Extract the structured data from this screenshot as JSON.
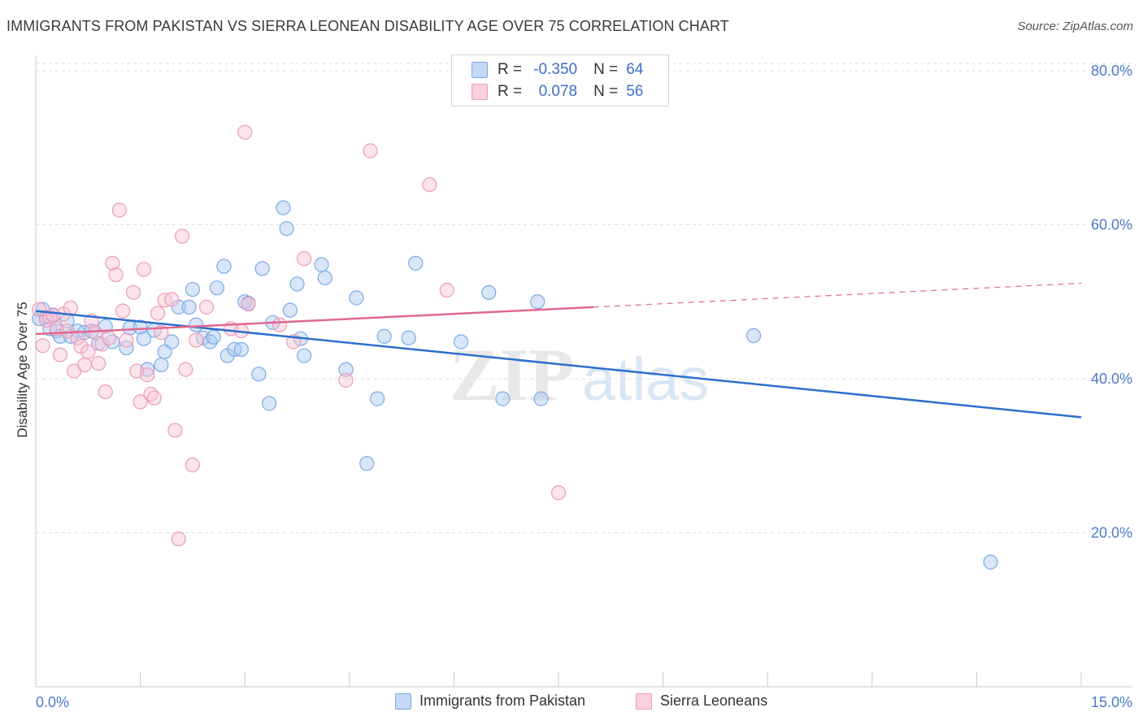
{
  "title": "IMMIGRANTS FROM PAKISTAN VS SIERRA LEONEAN DISABILITY AGE OVER 75 CORRELATION CHART",
  "source": "Source: ZipAtlas.com",
  "watermark": {
    "zip": "ZIP",
    "atlas": "atlas"
  },
  "legend_top": {
    "r_label": "R =",
    "n_label": "N =",
    "rows": [
      {
        "r": "-0.350",
        "n": "64"
      },
      {
        "r": "0.078",
        "n": "56"
      }
    ]
  },
  "chart_data": {
    "type": "scatter",
    "title": "IMMIGRANTS FROM PAKISTAN VS SIERRA LEONEAN DISABILITY AGE OVER 75 CORRELATION CHART",
    "xlabel": "",
    "ylabel": "Disability Age Over 75",
    "xlim": [
      0,
      15
    ],
    "ylim": [
      0,
      82
    ],
    "x_tick_labels": [
      "0.0%",
      "15.0%"
    ],
    "y_ticks": [
      20,
      40,
      60,
      80
    ],
    "y_tick_labels": [
      "20.0%",
      "40.0%",
      "60.0%",
      "80.0%"
    ],
    "grid": true,
    "legend": "bottom",
    "series": [
      {
        "name": "Immigrants from Pakistan",
        "color": "#7aaae6",
        "fill": "#aac8f0",
        "trend_color": "#2e6fcc",
        "trend": {
          "x": [
            0,
            15
          ],
          "y": [
            48.8,
            35.0
          ]
        },
        "points": [
          [
            0.05,
            47.8
          ],
          [
            0.1,
            49.0
          ],
          [
            0.15,
            48.0
          ],
          [
            0.2,
            46.5
          ],
          [
            0.25,
            48.2
          ],
          [
            0.3,
            46.2
          ],
          [
            0.35,
            45.5
          ],
          [
            0.45,
            47.5
          ],
          [
            0.5,
            45.5
          ],
          [
            0.6,
            46.2
          ],
          [
            0.7,
            46.0
          ],
          [
            0.8,
            46.2
          ],
          [
            0.9,
            44.6
          ],
          [
            1.0,
            46.8
          ],
          [
            1.1,
            44.8
          ],
          [
            1.3,
            44.0
          ],
          [
            1.35,
            46.6
          ],
          [
            1.5,
            46.7
          ],
          [
            1.55,
            45.2
          ],
          [
            1.6,
            41.2
          ],
          [
            1.7,
            46.3
          ],
          [
            1.8,
            41.8
          ],
          [
            1.85,
            43.5
          ],
          [
            1.95,
            44.8
          ],
          [
            2.05,
            49.3
          ],
          [
            2.2,
            49.3
          ],
          [
            2.25,
            51.6
          ],
          [
            2.3,
            47.0
          ],
          [
            2.4,
            45.3
          ],
          [
            2.5,
            44.8
          ],
          [
            2.55,
            45.4
          ],
          [
            2.6,
            51.8
          ],
          [
            2.7,
            54.6
          ],
          [
            2.75,
            43.0
          ],
          [
            2.85,
            43.8
          ],
          [
            2.95,
            43.8
          ],
          [
            3.0,
            50.0
          ],
          [
            3.05,
            49.8
          ],
          [
            3.2,
            40.6
          ],
          [
            3.25,
            54.3
          ],
          [
            3.35,
            36.8
          ],
          [
            3.4,
            47.3
          ],
          [
            3.55,
            62.2
          ],
          [
            3.6,
            59.5
          ],
          [
            3.65,
            48.9
          ],
          [
            3.75,
            52.3
          ],
          [
            3.8,
            45.2
          ],
          [
            3.85,
            43.0
          ],
          [
            4.1,
            54.8
          ],
          [
            4.15,
            53.1
          ],
          [
            4.45,
            41.2
          ],
          [
            4.6,
            50.5
          ],
          [
            4.75,
            29.0
          ],
          [
            4.9,
            37.4
          ],
          [
            5.0,
            45.5
          ],
          [
            5.35,
            45.3
          ],
          [
            5.45,
            55.0
          ],
          [
            6.1,
            44.8
          ],
          [
            6.5,
            51.2
          ],
          [
            6.7,
            37.4
          ],
          [
            7.2,
            50.0
          ],
          [
            7.25,
            37.4
          ],
          [
            10.3,
            45.6
          ],
          [
            13.7,
            16.2
          ]
        ]
      },
      {
        "name": "Sierra Leoneans",
        "color": "#ee9bb6",
        "fill": "#f7c4d5",
        "trend_color": "#e0688f",
        "trend": {
          "x": [
            0,
            8.0
          ],
          "y": [
            45.8,
            49.3
          ]
        },
        "trend_dashed": {
          "x": [
            8.0,
            15
          ],
          "y": [
            49.3,
            52.4
          ]
        },
        "points": [
          [
            0.05,
            49.0
          ],
          [
            0.1,
            44.3
          ],
          [
            0.15,
            47.6
          ],
          [
            0.2,
            48.0
          ],
          [
            0.3,
            46.5
          ],
          [
            0.35,
            43.1
          ],
          [
            0.4,
            48.4
          ],
          [
            0.5,
            49.2
          ],
          [
            0.55,
            41.0
          ],
          [
            0.6,
            45.3
          ],
          [
            0.65,
            44.2
          ],
          [
            0.7,
            41.8
          ],
          [
            0.75,
            43.5
          ],
          [
            0.8,
            47.5
          ],
          [
            0.85,
            46.0
          ],
          [
            0.9,
            42.0
          ],
          [
            0.95,
            44.5
          ],
          [
            1.0,
            38.3
          ],
          [
            1.05,
            45.3
          ],
          [
            1.1,
            55.0
          ],
          [
            1.15,
            53.5
          ],
          [
            1.2,
            61.9
          ],
          [
            1.3,
            45.0
          ],
          [
            1.4,
            51.2
          ],
          [
            1.45,
            41.0
          ],
          [
            1.5,
            37.0
          ],
          [
            1.55,
            54.2
          ],
          [
            1.6,
            40.5
          ],
          [
            1.65,
            38.0
          ],
          [
            1.7,
            37.5
          ],
          [
            1.8,
            46.0
          ],
          [
            1.85,
            50.2
          ],
          [
            1.95,
            50.3
          ],
          [
            2.0,
            33.3
          ],
          [
            2.05,
            19.2
          ],
          [
            2.1,
            58.5
          ],
          [
            2.15,
            41.2
          ],
          [
            2.25,
            28.8
          ],
          [
            2.45,
            49.3
          ],
          [
            2.8,
            46.5
          ],
          [
            2.95,
            46.2
          ],
          [
            3.0,
            72.0
          ],
          [
            3.05,
            49.7
          ],
          [
            3.7,
            44.8
          ],
          [
            3.85,
            55.6
          ],
          [
            4.45,
            39.8
          ],
          [
            4.8,
            69.6
          ],
          [
            5.65,
            65.2
          ],
          [
            5.9,
            51.5
          ],
          [
            7.5,
            25.2
          ],
          [
            1.25,
            48.8
          ],
          [
            0.45,
            46.2
          ],
          [
            2.3,
            45.0
          ],
          [
            1.75,
            48.5
          ],
          [
            3.5,
            47.0
          ],
          [
            0.25,
            48.3
          ]
        ]
      }
    ]
  }
}
